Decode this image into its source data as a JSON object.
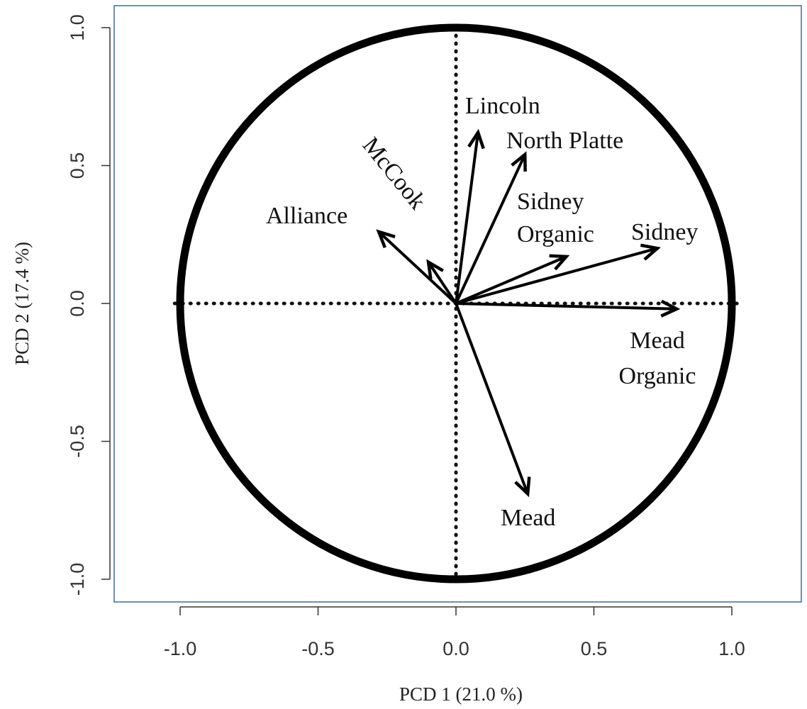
{
  "chart_data": {
    "type": "scatter",
    "subtype": "correlation-circle-biplot",
    "title": "",
    "xlabel": "PCD 1 (21.0 %)",
    "ylabel": "PCD 2 (17.4 %)",
    "xlim": [
      -1.25,
      1.25
    ],
    "ylim": [
      -1.07,
      1.07
    ],
    "xticks": [
      "-1.0",
      "-0.5",
      "0.0",
      "0.5",
      "1.0"
    ],
    "yticks": [
      "-1.0",
      "-0.5",
      "0.0",
      "0.5",
      "1.0"
    ],
    "xtick_values": [
      -1.0,
      -0.5,
      0.0,
      0.5,
      1.0
    ],
    "ytick_values": [
      -1.0,
      -0.5,
      0.0,
      0.5,
      1.0
    ],
    "circle_radius": 1.0,
    "grid": false,
    "zero_lines": "dotted",
    "vectors": [
      {
        "name": "Lincoln",
        "label": [
          "Lincoln"
        ],
        "x": 0.08,
        "y": 0.62
      },
      {
        "name": "North Platte",
        "label": [
          "North Platte"
        ],
        "x": 0.25,
        "y": 0.54
      },
      {
        "name": "McCook",
        "label": [
          "McCook"
        ],
        "x": -0.1,
        "y": 0.15
      },
      {
        "name": "Alliance",
        "label": [
          "Alliance"
        ],
        "x": -0.28,
        "y": 0.26
      },
      {
        "name": "Sidney Organic",
        "label": [
          "Sidney",
          "Organic"
        ],
        "x": 0.4,
        "y": 0.17
      },
      {
        "name": "Sidney",
        "label": [
          "Sidney"
        ],
        "x": 0.73,
        "y": 0.2
      },
      {
        "name": "Mead Organic",
        "label": [
          "Mead",
          "Organic"
        ],
        "x": 0.8,
        "y": -0.02
      },
      {
        "name": "Mead",
        "label": [
          "Mead"
        ],
        "x": 0.26,
        "y": -0.69
      }
    ]
  }
}
